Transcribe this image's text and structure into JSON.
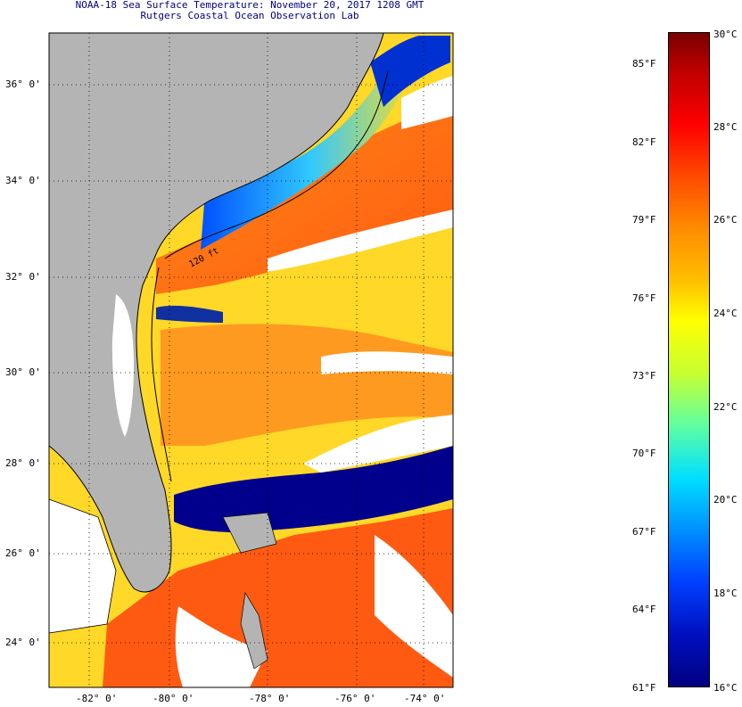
{
  "header": {
    "title": "NOAA-18 Sea Surface Temperature:  November 20, 2017 1208 GMT",
    "subtitle": "Rutgers Coastal Ocean Observation Lab"
  },
  "map": {
    "latitude_labels": [
      "36° 0'",
      "34° 0'",
      "32° 0'",
      "30° 0'",
      "28° 0'",
      "26° 0'",
      "24° 0'"
    ],
    "longitude_labels": [
      "-82° 0'",
      "-80° 0'",
      "-78° 0'",
      "-76° 0'",
      "-74° 0'"
    ],
    "bathymetry_label": "120 ft",
    "colors": {
      "land": "#b4b4b4",
      "cloud": "#ffffff",
      "cold_shelf": "#00008c",
      "warm_stream": "#ff7a10",
      "mid": "#ffd21e"
    }
  },
  "colorbar": {
    "celsius_labels": [
      "30°C",
      "28°C",
      "26°C",
      "24°C",
      "22°C",
      "20°C",
      "18°C",
      "16°C"
    ],
    "fahrenheit_labels": [
      "85°F",
      "82°F",
      "79°F",
      "76°F",
      "73°F",
      "70°F",
      "67°F",
      "64°F",
      "61°F"
    ],
    "range_celsius": [
      16,
      30
    ]
  }
}
